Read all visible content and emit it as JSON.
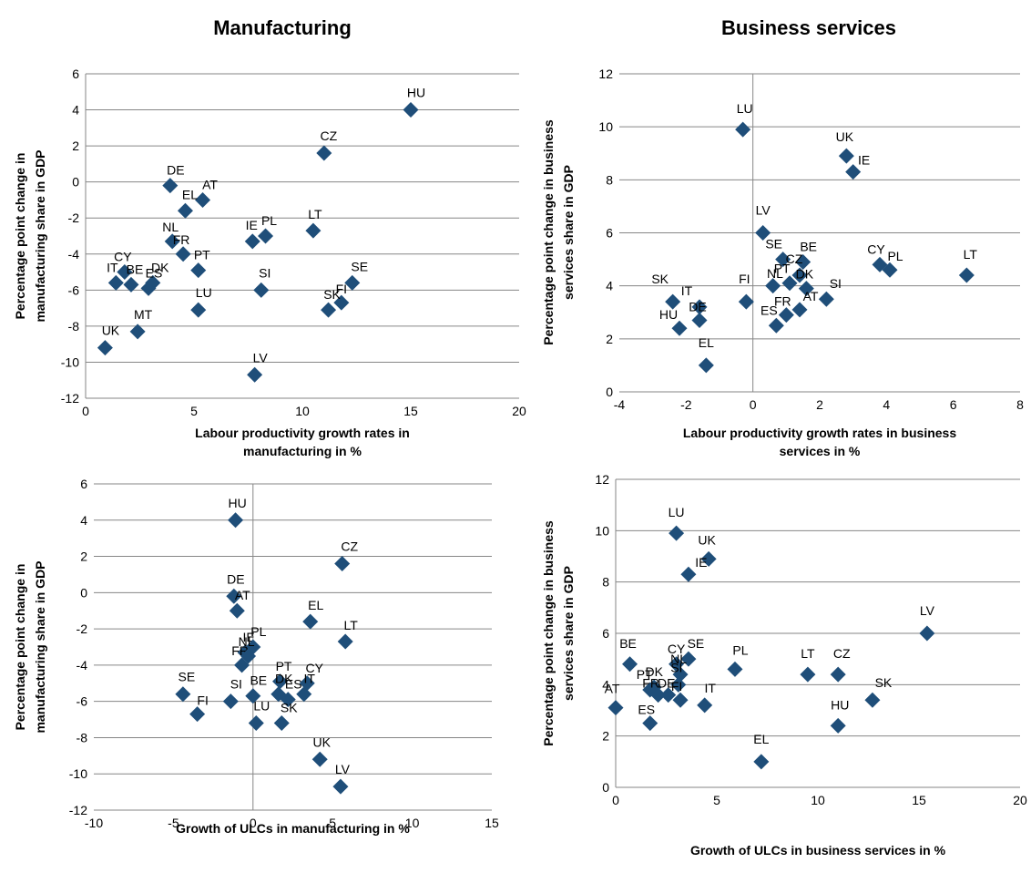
{
  "colors": {
    "marker": "#1F4E79",
    "grid": "#868686",
    "axis": "#868686"
  },
  "column_titles": {
    "left": "Manufacturing",
    "right": "Business services"
  },
  "chart_data": [
    {
      "type": "scatter",
      "title": "",
      "xlabel": [
        "Labour productivity growth rates in",
        "manufacturing in %"
      ],
      "ylabel": [
        "Percentage point change in",
        "manufacturing share in GDP"
      ],
      "xlim": [
        0,
        20
      ],
      "ylim": [
        -12,
        6
      ],
      "xticks": [
        0,
        5,
        10,
        15,
        20
      ],
      "yticks": [
        -12,
        -10,
        -8,
        -6,
        -4,
        -2,
        0,
        2,
        4,
        6
      ],
      "grid": "horizontal",
      "marker": "diamond",
      "points": [
        {
          "label": "HU",
          "x": 15.0,
          "y": 4.0
        },
        {
          "label": "CZ",
          "x": 11.0,
          "y": 1.6
        },
        {
          "label": "DE",
          "x": 3.9,
          "y": -0.2
        },
        {
          "label": "AT",
          "x": 5.4,
          "y": -1.0
        },
        {
          "label": "EL",
          "x": 4.6,
          "y": -1.6
        },
        {
          "label": "LT",
          "x": 10.5,
          "y": -2.7
        },
        {
          "label": "IE",
          "x": 7.7,
          "y": -3.3
        },
        {
          "label": "PL",
          "x": 8.3,
          "y": -3.0
        },
        {
          "label": "NL",
          "x": 4.0,
          "y": -3.3
        },
        {
          "label": "FR",
          "x": 4.5,
          "y": -4.0
        },
        {
          "label": "PT",
          "x": 5.2,
          "y": -4.9
        },
        {
          "label": "CY",
          "x": 1.8,
          "y": -5.0
        },
        {
          "label": "IT",
          "x": 1.4,
          "y": -5.6
        },
        {
          "label": "BE",
          "x": 2.1,
          "y": -5.7
        },
        {
          "label": "DK",
          "x": 3.1,
          "y": -5.6
        },
        {
          "label": "ES",
          "x": 2.9,
          "y": -5.9
        },
        {
          "label": "SE",
          "x": 12.3,
          "y": -5.6
        },
        {
          "label": "SI",
          "x": 8.1,
          "y": -6.0
        },
        {
          "label": "FI",
          "x": 11.8,
          "y": -6.7
        },
        {
          "label": "SK",
          "x": 11.2,
          "y": -7.1
        },
        {
          "label": "LU",
          "x": 5.2,
          "y": -7.1
        },
        {
          "label": "MT",
          "x": 2.4,
          "y": -8.3
        },
        {
          "label": "UK",
          "x": 0.9,
          "y": -9.2
        },
        {
          "label": "LV",
          "x": 7.8,
          "y": -10.7
        }
      ]
    },
    {
      "type": "scatter",
      "title": "",
      "xlabel": [
        "Labour productivity growth rates in business",
        "services in %"
      ],
      "ylabel": [
        "Percentage point change in business",
        "services share in GDP"
      ],
      "xlim": [
        -4,
        8
      ],
      "ylim": [
        0,
        12
      ],
      "xticks": [
        -4,
        -2,
        0,
        2,
        4,
        6,
        8
      ],
      "yticks": [
        0,
        2,
        4,
        6,
        8,
        10,
        12
      ],
      "grid": "horizontal",
      "marker": "diamond",
      "points": [
        {
          "label": "LU",
          "x": -0.3,
          "y": 9.9
        },
        {
          "label": "UK",
          "x": 2.8,
          "y": 8.9
        },
        {
          "label": "IE",
          "x": 3.0,
          "y": 8.3
        },
        {
          "label": "LV",
          "x": 0.3,
          "y": 6.0
        },
        {
          "label": "SE",
          "x": 0.9,
          "y": 5.0
        },
        {
          "label": "BE",
          "x": 1.5,
          "y": 4.9
        },
        {
          "label": "CZ",
          "x": 1.4,
          "y": 4.4
        },
        {
          "label": "NL",
          "x": 1.1,
          "y": 4.1
        },
        {
          "label": "DK",
          "x": 1.6,
          "y": 3.9
        },
        {
          "label": "CY",
          "x": 3.8,
          "y": 4.8
        },
        {
          "label": "PL",
          "x": 4.1,
          "y": 4.6
        },
        {
          "label": "LT",
          "x": 6.4,
          "y": 4.4
        },
        {
          "label": "SK",
          "x": -2.4,
          "y": 3.4
        },
        {
          "label": "IT",
          "x": -1.6,
          "y": 3.2
        },
        {
          "label": "FI",
          "x": -0.2,
          "y": 3.4
        },
        {
          "label": "SI",
          "x": 2.2,
          "y": 3.5
        },
        {
          "label": "PT",
          "x": 0.6,
          "y": 4.0
        },
        {
          "label": "AT",
          "x": 1.4,
          "y": 3.1
        },
        {
          "label": "ES",
          "x": 0.7,
          "y": 2.5
        },
        {
          "label": "FR",
          "x": 1.0,
          "y": 2.9
        },
        {
          "label": "DE",
          "x": -1.6,
          "y": 2.7
        },
        {
          "label": "HU",
          "x": -2.2,
          "y": 2.4
        },
        {
          "label": "EL",
          "x": -1.4,
          "y": 1.0
        }
      ]
    },
    {
      "type": "scatter",
      "title": "",
      "xlabel": [
        "Growth of ULCs in manufacturing in %"
      ],
      "ylabel": [
        "Percentage point change in",
        "manufacturing share in GDP"
      ],
      "xlim": [
        -10,
        15
      ],
      "ylim": [
        -12,
        6
      ],
      "xticks": [
        -10,
        -5,
        0,
        5,
        10,
        15
      ],
      "yticks": [
        -12,
        -10,
        -8,
        -6,
        -4,
        -2,
        0,
        2,
        4,
        6
      ],
      "grid": "horizontal",
      "marker": "diamond",
      "points": [
        {
          "label": "HU",
          "x": -1.1,
          "y": 4.0
        },
        {
          "label": "CZ",
          "x": 5.6,
          "y": 1.6
        },
        {
          "label": "DE",
          "x": -1.2,
          "y": -0.2
        },
        {
          "label": "AT",
          "x": -1.0,
          "y": -1.0
        },
        {
          "label": "EL",
          "x": 3.6,
          "y": -1.6
        },
        {
          "label": "LT",
          "x": 5.8,
          "y": -2.7
        },
        {
          "label": "IE",
          "x": -0.5,
          "y": -3.3
        },
        {
          "label": "PL",
          "x": 0.0,
          "y": -3.0
        },
        {
          "label": "FR",
          "x": -0.7,
          "y": -4.0
        },
        {
          "label": "NL",
          "x": -0.3,
          "y": -3.5
        },
        {
          "label": "PT",
          "x": 1.7,
          "y": -4.9
        },
        {
          "label": "CY",
          "x": 3.4,
          "y": -5.0
        },
        {
          "label": "IT",
          "x": 3.2,
          "y": -5.6
        },
        {
          "label": "DK",
          "x": 1.6,
          "y": -5.6
        },
        {
          "label": "ES",
          "x": 2.2,
          "y": -5.9
        },
        {
          "label": "BE",
          "x": 0.0,
          "y": -5.7
        },
        {
          "label": "SE",
          "x": -4.4,
          "y": -5.6
        },
        {
          "label": "SI",
          "x": -1.4,
          "y": -6.0
        },
        {
          "label": "FI",
          "x": -3.5,
          "y": -6.7
        },
        {
          "label": "LU",
          "x": 0.2,
          "y": -7.2
        },
        {
          "label": "SK",
          "x": 1.8,
          "y": -7.2
        },
        {
          "label": "UK",
          "x": 4.2,
          "y": -9.2
        },
        {
          "label": "LV",
          "x": 5.5,
          "y": -10.7
        }
      ]
    },
    {
      "type": "scatter",
      "title": "",
      "xlabel": [
        "Growth of ULCs in business services in %"
      ],
      "ylabel": [
        "Percentage point change in business",
        "services share in GDP"
      ],
      "xlim": [
        0,
        20
      ],
      "ylim": [
        0,
        12
      ],
      "xticks": [
        0,
        5,
        10,
        15,
        20
      ],
      "yticks": [
        0,
        2,
        4,
        6,
        8,
        10,
        12
      ],
      "grid": "horizontal",
      "marker": "diamond",
      "points": [
        {
          "label": "LU",
          "x": 3.0,
          "y": 9.9
        },
        {
          "label": "UK",
          "x": 4.6,
          "y": 8.9
        },
        {
          "label": "IE",
          "x": 3.6,
          "y": 8.3
        },
        {
          "label": "LV",
          "x": 15.4,
          "y": 6.0
        },
        {
          "label": "SE",
          "x": 3.6,
          "y": 5.0
        },
        {
          "label": "CY",
          "x": 3.0,
          "y": 4.8
        },
        {
          "label": "NL",
          "x": 3.2,
          "y": 4.4
        },
        {
          "label": "BE",
          "x": 0.7,
          "y": 4.8
        },
        {
          "label": "DK",
          "x": 1.9,
          "y": 3.9
        },
        {
          "label": "PL",
          "x": 5.9,
          "y": 4.6
        },
        {
          "label": "LT",
          "x": 9.5,
          "y": 4.4
        },
        {
          "label": "CZ",
          "x": 11.0,
          "y": 4.4
        },
        {
          "label": "SK",
          "x": 12.7,
          "y": 3.4
        },
        {
          "label": "SI",
          "x": 3.1,
          "y": 4.0
        },
        {
          "label": "AT",
          "x": 0.0,
          "y": 3.1
        },
        {
          "label": "PT",
          "x": 1.7,
          "y": 3.8
        },
        {
          "label": "FR",
          "x": 2.1,
          "y": 3.6
        },
        {
          "label": "FI",
          "x": 3.2,
          "y": 3.4
        },
        {
          "label": "DE",
          "x": 2.6,
          "y": 3.6
        },
        {
          "label": "IT",
          "x": 4.4,
          "y": 3.2
        },
        {
          "label": "ES",
          "x": 1.7,
          "y": 2.5
        },
        {
          "label": "HU",
          "x": 11.0,
          "y": 2.4
        },
        {
          "label": "EL",
          "x": 7.2,
          "y": 1.0
        }
      ]
    }
  ]
}
